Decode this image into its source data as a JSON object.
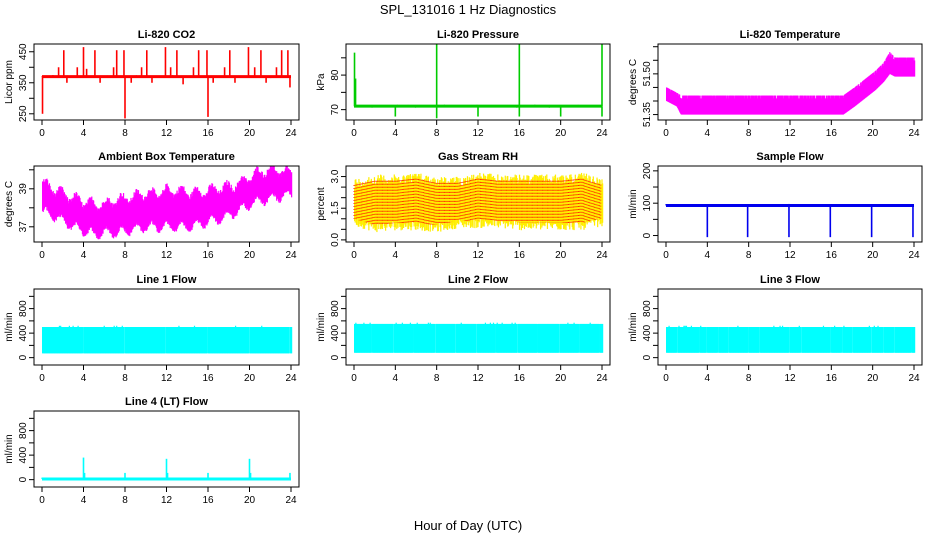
{
  "title": "SPL_131016  1 Hz Diagnostics",
  "xlabel": "Hour of Day (UTC)",
  "chart_data": [
    {
      "type": "line",
      "title": "Li-820 CO2",
      "ylabel": "Licor ppm",
      "color": "#ff0000",
      "xlim": [
        0,
        24
      ],
      "xticks": [
        0,
        4,
        8,
        12,
        16,
        20,
        24
      ],
      "ylim": [
        230,
        475
      ],
      "yticks": [
        250,
        300,
        350,
        400,
        450
      ],
      "yticklabels": [
        "250",
        "",
        "350",
        "",
        "450"
      ],
      "baseline": 370,
      "spikes": [
        {
          "x": 0.05,
          "y": 250
        },
        {
          "x": 1.6,
          "y": 400
        },
        {
          "x": 2.1,
          "y": 455
        },
        {
          "x": 2.4,
          "y": 350
        },
        {
          "x": 3.4,
          "y": 400
        },
        {
          "x": 4.0,
          "y": 465
        },
        {
          "x": 4.3,
          "y": 395
        },
        {
          "x": 5.1,
          "y": 455
        },
        {
          "x": 5.6,
          "y": 350
        },
        {
          "x": 6.9,
          "y": 400
        },
        {
          "x": 7.2,
          "y": 455
        },
        {
          "x": 7.9,
          "y": 455
        },
        {
          "x": 8.0,
          "y": 235
        },
        {
          "x": 8.6,
          "y": 350
        },
        {
          "x": 9.6,
          "y": 400
        },
        {
          "x": 10.1,
          "y": 455
        },
        {
          "x": 10.6,
          "y": 350
        },
        {
          "x": 11.9,
          "y": 465
        },
        {
          "x": 12.4,
          "y": 400
        },
        {
          "x": 13.0,
          "y": 455
        },
        {
          "x": 13.6,
          "y": 345
        },
        {
          "x": 14.6,
          "y": 400
        },
        {
          "x": 15.1,
          "y": 455
        },
        {
          "x": 15.9,
          "y": 455
        },
        {
          "x": 16.0,
          "y": 240
        },
        {
          "x": 16.5,
          "y": 350
        },
        {
          "x": 17.6,
          "y": 400
        },
        {
          "x": 18.1,
          "y": 455
        },
        {
          "x": 18.6,
          "y": 350
        },
        {
          "x": 19.9,
          "y": 465
        },
        {
          "x": 20.5,
          "y": 400
        },
        {
          "x": 21.1,
          "y": 455
        },
        {
          "x": 21.6,
          "y": 350
        },
        {
          "x": 22.6,
          "y": 400
        },
        {
          "x": 23.1,
          "y": 455
        },
        {
          "x": 23.7,
          "y": 455
        },
        {
          "x": 23.9,
          "y": 335
        }
      ]
    },
    {
      "type": "line",
      "title": "Li-820 Pressure",
      "ylabel": "kPa",
      "color": "#00cc00",
      "xlim": [
        0,
        24
      ],
      "xticks": [
        0,
        4,
        8,
        12,
        16,
        20,
        24
      ],
      "ylim": [
        67,
        89
      ],
      "yticks": [
        70,
        75,
        80,
        85
      ],
      "yticklabels": [
        "70",
        "",
        "80",
        ""
      ],
      "baseline": 71,
      "spikes": [
        {
          "x": 0.05,
          "y": 86.5
        },
        {
          "x": 0.15,
          "y": 79
        },
        {
          "x": 4.0,
          "y": 68
        },
        {
          "x": 8.0,
          "y": 89
        },
        {
          "x": 8.0,
          "y": 67.5
        },
        {
          "x": 12.0,
          "y": 68
        },
        {
          "x": 16.0,
          "y": 89
        },
        {
          "x": 16.0,
          "y": 68
        },
        {
          "x": 20.0,
          "y": 68
        },
        {
          "x": 24.0,
          "y": 89
        },
        {
          "x": 24.0,
          "y": 68
        }
      ]
    },
    {
      "type": "band",
      "title": "Li-820 Temperature",
      "ylabel": "degrees C",
      "color": "#ff00ff",
      "xlim": [
        0,
        24
      ],
      "xticks": [
        0,
        4,
        8,
        12,
        16,
        20,
        24
      ],
      "ylim": [
        51.33,
        51.61
      ],
      "yticks": [
        51.35,
        51.4,
        51.45,
        51.5,
        51.55,
        51.6
      ],
      "yticklabels": [
        "51.35",
        "",
        "",
        "51.50",
        "",
        ""
      ],
      "x": [
        0,
        1,
        1.4,
        17.1,
        18.2,
        19.2,
        20.2,
        21.0,
        21.6,
        22.1,
        24
      ],
      "lower": [
        51.4,
        51.38,
        51.35,
        51.35,
        51.38,
        51.41,
        51.44,
        51.47,
        51.5,
        51.49,
        51.49
      ],
      "upper": [
        51.45,
        51.43,
        51.42,
        51.42,
        51.45,
        51.48,
        51.51,
        51.54,
        51.58,
        51.56,
        51.56
      ]
    },
    {
      "type": "band",
      "title": "Ambient Box Temperature",
      "ylabel": "degrees C",
      "color": "#ff00ff",
      "xlim": [
        0,
        24
      ],
      "xticks": [
        0,
        4,
        8,
        12,
        16,
        20,
        24
      ],
      "ylim": [
        36.2,
        40.2
      ],
      "yticks": [
        37,
        38,
        39,
        40
      ],
      "yticklabels": [
        "37",
        "",
        "39",
        ""
      ],
      "x": [
        0,
        1,
        2,
        3,
        4,
        5,
        6,
        7,
        8,
        9,
        10,
        11,
        12,
        13,
        14,
        15,
        16,
        17,
        18,
        19,
        20,
        21,
        22,
        23,
        24
      ],
      "lower": [
        37.8,
        37.6,
        37.3,
        37.0,
        36.8,
        36.6,
        36.7,
        36.7,
        36.8,
        36.9,
        37.0,
        37.0,
        37.0,
        37.0,
        37.0,
        37.1,
        37.3,
        37.4,
        37.6,
        37.9,
        38.2,
        38.4,
        38.5,
        38.6,
        38.7
      ],
      "upper": [
        39.3,
        39.0,
        38.7,
        38.5,
        38.3,
        38.2,
        38.2,
        38.4,
        38.5,
        38.6,
        38.8,
        38.7,
        38.9,
        38.9,
        38.8,
        38.8,
        38.9,
        39.0,
        39.1,
        39.3,
        39.6,
        39.9,
        40.0,
        39.9,
        39.9
      ]
    },
    {
      "type": "band",
      "title": "Gas Stream RH",
      "ylabel": "percent",
      "color": "#ffee00",
      "secondary_color": "#ff2a00",
      "xlim": [
        0,
        24
      ],
      "xticks": [
        0,
        4,
        8,
        12,
        16,
        20,
        24
      ],
      "ylim": [
        -0.1,
        3.5
      ],
      "yticks": [
        0.0,
        0.5,
        1.0,
        1.5,
        2.0,
        2.5,
        3.0
      ],
      "yticklabels": [
        "0.0",
        "",
        "",
        "1.5",
        "",
        "",
        "3.0"
      ],
      "x": [
        0,
        2,
        4,
        6,
        8,
        10,
        12,
        14,
        16,
        18,
        20,
        22,
        24
      ],
      "lower": [
        0.8,
        0.5,
        0.6,
        0.6,
        0.5,
        0.7,
        0.7,
        0.7,
        0.6,
        0.6,
        0.6,
        0.6,
        0.8
      ],
      "upper": [
        2.8,
        3.0,
        3.0,
        3.1,
        2.9,
        2.9,
        3.1,
        3.0,
        3.0,
        3.0,
        3.0,
        3.1,
        2.8
      ]
    },
    {
      "type": "line",
      "title": "Sample Flow",
      "ylabel": "ml/min",
      "color": "#0000ee",
      "xlim": [
        0,
        24
      ],
      "xticks": [
        0,
        4,
        8,
        12,
        16,
        20,
        24
      ],
      "ylim": [
        -20,
        215
      ],
      "yticks": [
        0,
        50,
        100,
        150,
        200
      ],
      "yticklabels": [
        "0",
        "",
        "100",
        "",
        "200"
      ],
      "baseline": 93,
      "spikes": [
        {
          "x": 4.0,
          "y": -5
        },
        {
          "x": 7.9,
          "y": -5
        },
        {
          "x": 11.9,
          "y": -5
        },
        {
          "x": 15.9,
          "y": -5
        },
        {
          "x": 19.9,
          "y": -5
        },
        {
          "x": 23.9,
          "y": -5
        }
      ]
    },
    {
      "type": "band",
      "title": "Line 1 Flow",
      "ylabel": "ml/min",
      "color": "#00ffff",
      "xlim": [
        0,
        24
      ],
      "xticks": [
        0,
        4,
        8,
        12,
        16,
        20,
        24
      ],
      "ylim": [
        -120,
        1120
      ],
      "yticks": [
        0,
        200,
        400,
        600,
        800,
        1000
      ],
      "yticklabels": [
        "0",
        "",
        "400",
        "",
        "800",
        ""
      ],
      "x": [
        0,
        24
      ],
      "lower": [
        70,
        70
      ],
      "upper": [
        500,
        500
      ],
      "gaps": [
        3.9,
        7.9,
        11.9,
        15.9,
        19.9,
        23.8
      ]
    },
    {
      "type": "band",
      "title": "Line 2 Flow",
      "ylabel": "ml/min",
      "color": "#00ffff",
      "xlim": [
        0,
        24
      ],
      "xticks": [
        0,
        4,
        8,
        12,
        16,
        20,
        24
      ],
      "ylim": [
        -120,
        1120
      ],
      "yticks": [
        0,
        200,
        400,
        600,
        800,
        1000
      ],
      "yticklabels": [
        "0",
        "",
        "400",
        "",
        "800",
        ""
      ],
      "x": [
        0,
        24
      ],
      "lower": [
        80,
        80
      ],
      "upper": [
        550,
        550
      ],
      "gaps": [
        1.7,
        3.8,
        5.7,
        7.8,
        9.8,
        11.8,
        13.7,
        15.8,
        17.7,
        19.8,
        21.7,
        23.7
      ]
    },
    {
      "type": "band",
      "title": "Line 3 Flow",
      "ylabel": "ml/min",
      "color": "#00ffff",
      "xlim": [
        0,
        24
      ],
      "xticks": [
        0,
        4,
        8,
        12,
        16,
        20,
        24
      ],
      "ylim": [
        -120,
        1120
      ],
      "yticks": [
        0,
        200,
        400,
        600,
        800,
        1000
      ],
      "yticklabels": [
        "0",
        "",
        "400",
        "",
        "800",
        ""
      ],
      "x": [
        0,
        24
      ],
      "lower": [
        80,
        80
      ],
      "upper": [
        500,
        500
      ],
      "gaps": [
        1.0,
        3.2,
        3.9,
        5.0,
        6.0,
        7.9,
        9.0,
        11.9,
        13.0,
        15.9,
        17.0,
        18.0,
        19.8,
        21.0,
        22.0,
        23.7
      ]
    },
    {
      "type": "line",
      "title": "Line 4 (LT) Flow",
      "ylabel": "ml/min",
      "color": "#00ffff",
      "xlim": [
        0,
        24
      ],
      "xticks": [
        0,
        4,
        8,
        12,
        16,
        20,
        24
      ],
      "ylim": [
        -120,
        1120
      ],
      "yticks": [
        0,
        200,
        400,
        600,
        800,
        1000
      ],
      "yticklabels": [
        "0",
        "",
        "400",
        "",
        "800",
        ""
      ],
      "baseline": 10,
      "spikes": [
        {
          "x": 4.0,
          "y": 360
        },
        {
          "x": 4.1,
          "y": 110
        },
        {
          "x": 8.0,
          "y": 110
        },
        {
          "x": 12.0,
          "y": 340
        },
        {
          "x": 12.1,
          "y": 110
        },
        {
          "x": 16.0,
          "y": 110
        },
        {
          "x": 20.0,
          "y": 340
        },
        {
          "x": 20.1,
          "y": 110
        },
        {
          "x": 23.9,
          "y": 110
        }
      ]
    }
  ]
}
